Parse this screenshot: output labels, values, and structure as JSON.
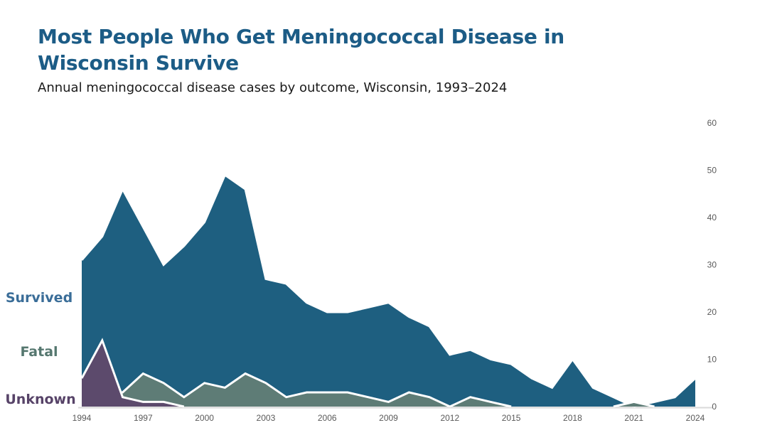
{
  "header": {
    "title": "Most People Who Get Meningococcal Disease in Wisconsin Survive",
    "subtitle": "Annual meningococcal disease cases by outcome, Wisconsin, 1993–2024"
  },
  "colors": {
    "title": "#1c5c86",
    "axis_text": "#595959",
    "baseline": "#d9d9d9",
    "area_outline": "#ffffff"
  },
  "chart_data": {
    "type": "area",
    "title": "Most People Who Get Meningococcal Disease in Wisconsin Survive",
    "subtitle": "Annual meningococcal disease cases by outcome, Wisconsin, 1993–2024",
    "xlabel": "",
    "ylabel": "",
    "x": [
      1994,
      1995,
      1996,
      1997,
      1998,
      1999,
      2000,
      2001,
      2002,
      2003,
      2004,
      2005,
      2006,
      2007,
      2008,
      2009,
      2010,
      2011,
      2012,
      2013,
      2014,
      2015,
      2016,
      2017,
      2018,
      2019,
      2020,
      2021,
      2022,
      2023,
      2024
    ],
    "series": [
      {
        "name": "Survived",
        "fill": "#1e5f80",
        "label_color": "#3a6d98",
        "values": [
          31,
          36,
          46,
          38,
          30,
          34,
          39,
          49,
          46,
          27,
          26,
          22,
          20,
          20,
          21,
          22,
          19,
          17,
          11,
          12,
          10,
          9,
          6,
          4,
          10,
          4,
          2,
          0,
          1,
          2,
          6
        ]
      },
      {
        "name": "Fatal",
        "fill": "#5e7c76",
        "label_color": "#55776f",
        "values": [
          4,
          3,
          3,
          7,
          5,
          2,
          5,
          4,
          7,
          5,
          2,
          3,
          3,
          3,
          2,
          1,
          3,
          2,
          0,
          2,
          1,
          0,
          0,
          0,
          0,
          0,
          0,
          1,
          0,
          0,
          0
        ]
      },
      {
        "name": "Unknown",
        "fill": "#5c4a6c",
        "label_color": "#574368",
        "values": [
          6,
          14,
          2,
          1,
          1,
          0,
          0,
          0,
          0,
          0,
          0,
          0,
          0,
          0,
          0,
          0,
          0,
          0,
          0,
          0,
          0,
          0,
          0,
          0,
          0,
          0,
          0,
          0,
          0,
          0,
          0
        ]
      }
    ],
    "x_ticks": [
      1994,
      1997,
      2000,
      2003,
      2006,
      2009,
      2012,
      2015,
      2018,
      2021,
      2024
    ],
    "y_ticks": [
      0,
      10,
      20,
      30,
      40,
      50,
      60
    ],
    "ylim": [
      0,
      60
    ],
    "grid": false,
    "legend_position": "left",
    "style_note": "overlapping areas from zero baseline; draw order Survived (back), Fatal, Unknown (front); white outline along each top edge; y-axis labels on right side"
  }
}
